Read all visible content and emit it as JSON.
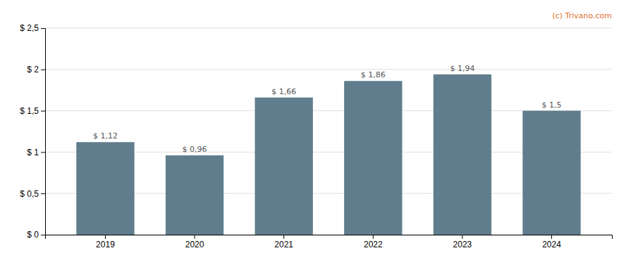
{
  "chart_data": {
    "type": "bar",
    "categories": [
      "2019",
      "2020",
      "2021",
      "2022",
      "2023",
      "2024"
    ],
    "values": [
      1.12,
      0.96,
      1.66,
      1.86,
      1.94,
      1.5
    ],
    "value_labels": [
      "$ 1,12",
      "$ 0,96",
      "$ 1,66",
      "$ 1,86",
      "$ 1,94",
      "$ 1,5"
    ],
    "color": "#5f7d8c",
    "ylim": [
      0,
      2.5
    ],
    "yticks": [
      {
        "value": 0,
        "label": "$ 0"
      },
      {
        "value": 0.5,
        "label": "$ 0,5"
      },
      {
        "value": 1.0,
        "label": "$ 1"
      },
      {
        "value": 1.5,
        "label": "$ 1,5"
      },
      {
        "value": 2.0,
        "label": "$ 2"
      },
      {
        "value": 2.5,
        "label": "$ 2,5"
      }
    ],
    "grid": true,
    "data_labels": true,
    "annotation": "(c) Trivano.com"
  }
}
